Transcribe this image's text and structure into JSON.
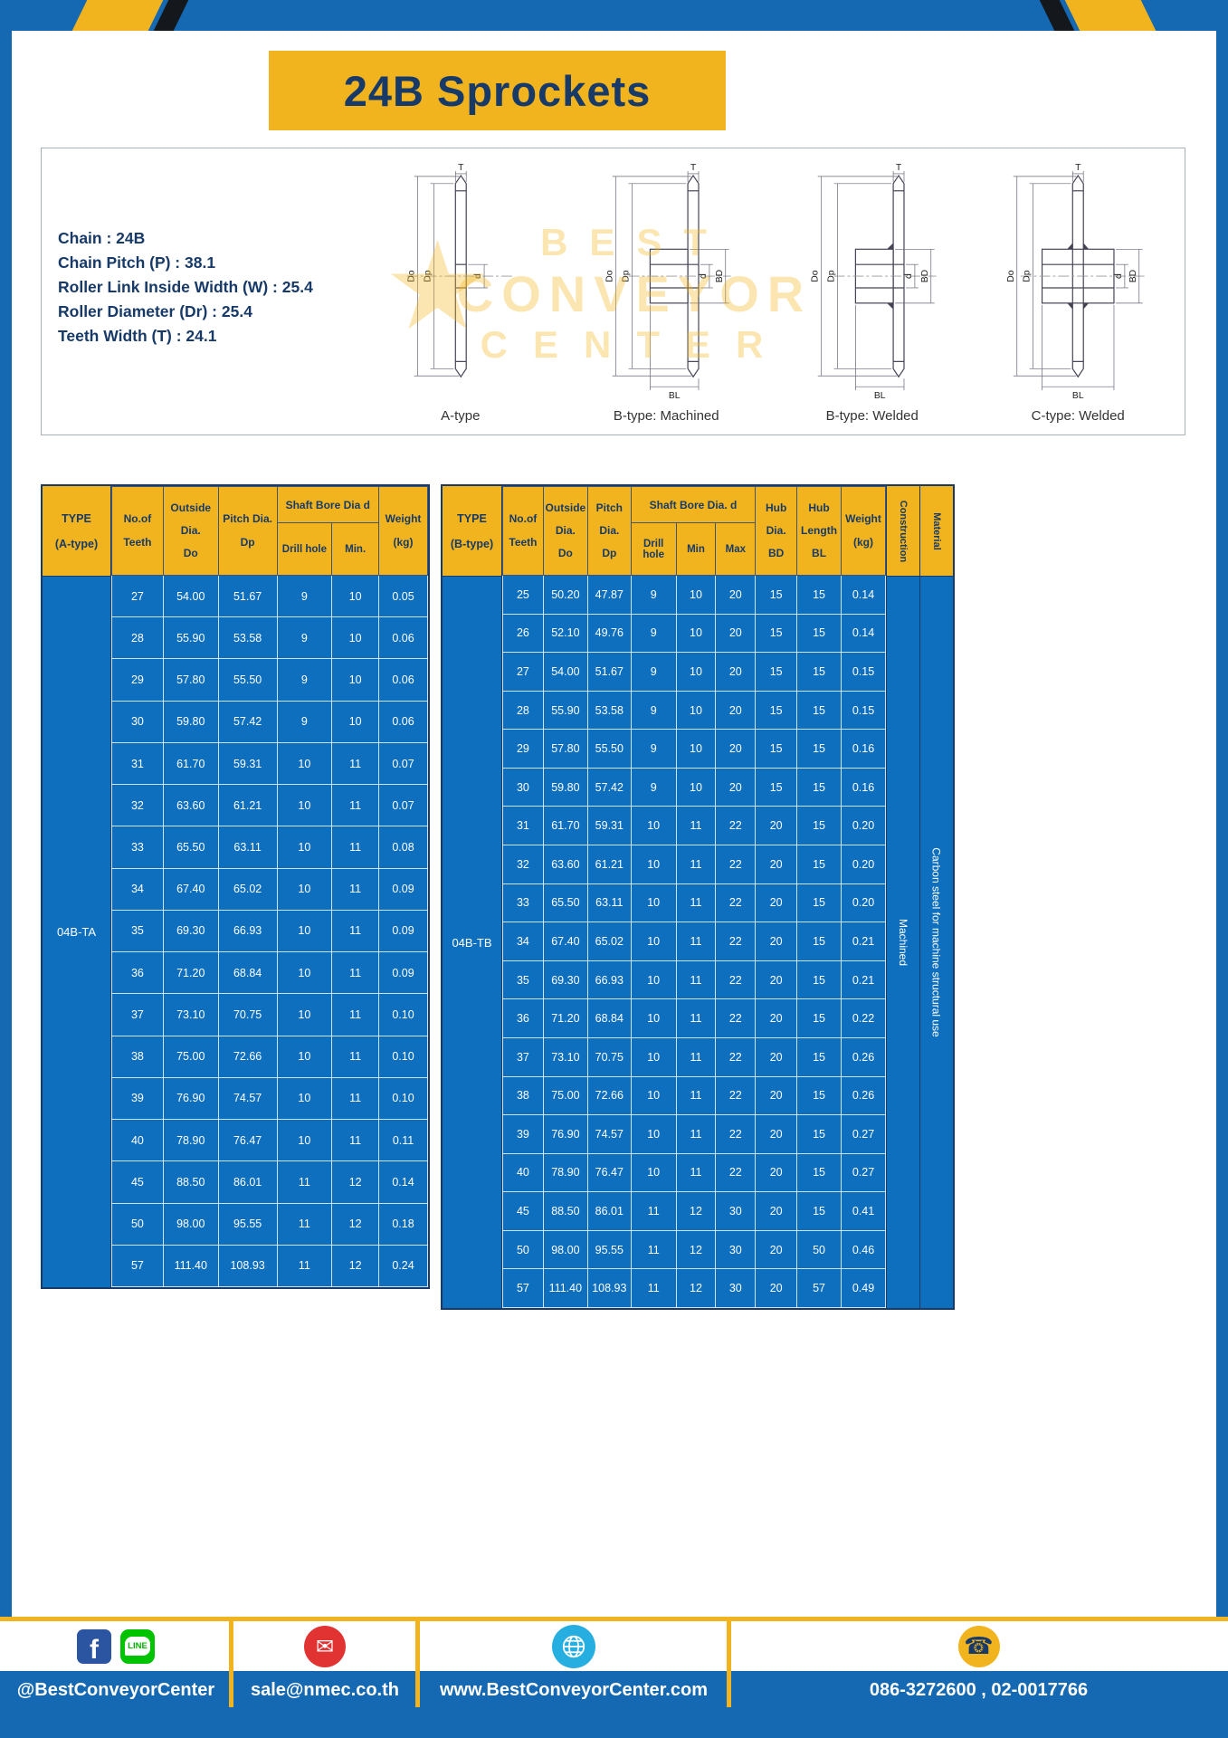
{
  "page": {
    "title": "24B Sprockets"
  },
  "specs": {
    "lines": [
      "Chain  :  24B",
      "Chain Pitch (P)  :  38.1",
      "Roller Link Inside Width (W)  :  25.4",
      "Roller Diameter (Dr)  :  25.4",
      "Teeth Width (T)  :  24.1"
    ]
  },
  "drawings": {
    "watermark": {
      "star": "★",
      "lines": [
        "BEST",
        "CONVEYOR",
        "CENTER"
      ]
    },
    "figures": [
      {
        "caption": "A-type",
        "dims": {
          "t": "T",
          "do": "Do",
          "dp": "Dp",
          "d": "d"
        }
      },
      {
        "caption": "B-type: Machined",
        "dims": {
          "t": "T",
          "do": "Do",
          "dp": "Dp",
          "d": "d",
          "bd": "BD",
          "bl": "BL"
        }
      },
      {
        "caption": "B-type: Welded",
        "dims": {
          "t": "T",
          "do": "Do",
          "dp": "Dp",
          "d": "d",
          "bd": "BD",
          "bl": "BL"
        }
      },
      {
        "caption": "C-type: Welded",
        "dims": {
          "t": "T",
          "do": "Do",
          "dp": "Dp",
          "d": "d",
          "bd": "BD",
          "bl": "BL"
        }
      }
    ]
  },
  "table_a": {
    "headers": {
      "type": [
        "TYPE",
        "(A-type)"
      ],
      "teeth": [
        "No.of",
        "Teeth"
      ],
      "outside": [
        "Outside",
        "Dia.",
        "Do"
      ],
      "pitch": [
        "Pitch Dia.",
        "Dp"
      ],
      "shaft_group": "Shaft Bore Dia d",
      "drill": "Drill hole",
      "min": "Min.",
      "weight": [
        "Weight",
        "(kg)"
      ]
    },
    "type_value": "04B-TA",
    "rows": [
      [
        "27",
        "54.00",
        "51.67",
        "9",
        "10",
        "0.05"
      ],
      [
        "28",
        "55.90",
        "53.58",
        "9",
        "10",
        "0.06"
      ],
      [
        "29",
        "57.80",
        "55.50",
        "9",
        "10",
        "0.06"
      ],
      [
        "30",
        "59.80",
        "57.42",
        "9",
        "10",
        "0.06"
      ],
      [
        "31",
        "61.70",
        "59.31",
        "10",
        "11",
        "0.07"
      ],
      [
        "32",
        "63.60",
        "61.21",
        "10",
        "11",
        "0.07"
      ],
      [
        "33",
        "65.50",
        "63.11",
        "10",
        "11",
        "0.08"
      ],
      [
        "34",
        "67.40",
        "65.02",
        "10",
        "11",
        "0.09"
      ],
      [
        "35",
        "69.30",
        "66.93",
        "10",
        "11",
        "0.09"
      ],
      [
        "36",
        "71.20",
        "68.84",
        "10",
        "11",
        "0.09"
      ],
      [
        "37",
        "73.10",
        "70.75",
        "10",
        "11",
        "0.10"
      ],
      [
        "38",
        "75.00",
        "72.66",
        "10",
        "11",
        "0.10"
      ],
      [
        "39",
        "76.90",
        "74.57",
        "10",
        "11",
        "0.10"
      ],
      [
        "40",
        "78.90",
        "76.47",
        "10",
        "11",
        "0.11"
      ],
      [
        "45",
        "88.50",
        "86.01",
        "11",
        "12",
        "0.14"
      ],
      [
        "50",
        "98.00",
        "95.55",
        "11",
        "12",
        "0.18"
      ],
      [
        "57",
        "111.40",
        "108.93",
        "11",
        "12",
        "0.24"
      ]
    ]
  },
  "table_b": {
    "headers": {
      "type": [
        "TYPE",
        "(B-type)"
      ],
      "teeth": [
        "No.of",
        "Teeth"
      ],
      "outside": [
        "Outside",
        "Dia.",
        "Do"
      ],
      "pitch": [
        "Pitch",
        "Dia.",
        "Dp"
      ],
      "shaft_group": "Shaft Bore Dia.  d",
      "drill": "Drill hole",
      "min": "Min",
      "max": "Max",
      "hub_dia": [
        "Hub",
        "Dia.",
        "BD"
      ],
      "hub_len": [
        "Hub",
        "Length",
        "BL"
      ],
      "weight": [
        "Weight",
        "(kg)"
      ],
      "construction": "Construction",
      "material": "Material"
    },
    "type_value": "04B-TB",
    "construction_value": "Machined",
    "material_value": "Carbon steel for machine structural use",
    "rows": [
      [
        "25",
        "50.20",
        "47.87",
        "9",
        "10",
        "20",
        "15",
        "15",
        "0.14"
      ],
      [
        "26",
        "52.10",
        "49.76",
        "9",
        "10",
        "20",
        "15",
        "15",
        "0.14"
      ],
      [
        "27",
        "54.00",
        "51.67",
        "9",
        "10",
        "20",
        "15",
        "15",
        "0.15"
      ],
      [
        "28",
        "55.90",
        "53.58",
        "9",
        "10",
        "20",
        "15",
        "15",
        "0.15"
      ],
      [
        "29",
        "57.80",
        "55.50",
        "9",
        "10",
        "20",
        "15",
        "15",
        "0.16"
      ],
      [
        "30",
        "59.80",
        "57.42",
        "9",
        "10",
        "20",
        "15",
        "15",
        "0.16"
      ],
      [
        "31",
        "61.70",
        "59.31",
        "10",
        "11",
        "22",
        "20",
        "15",
        "0.20"
      ],
      [
        "32",
        "63.60",
        "61.21",
        "10",
        "11",
        "22",
        "20",
        "15",
        "0.20"
      ],
      [
        "33",
        "65.50",
        "63.11",
        "10",
        "11",
        "22",
        "20",
        "15",
        "0.20"
      ],
      [
        "34",
        "67.40",
        "65.02",
        "10",
        "11",
        "22",
        "20",
        "15",
        "0.21"
      ],
      [
        "35",
        "69.30",
        "66.93",
        "10",
        "11",
        "22",
        "20",
        "15",
        "0.21"
      ],
      [
        "36",
        "71.20",
        "68.84",
        "10",
        "11",
        "22",
        "20",
        "15",
        "0.22"
      ],
      [
        "37",
        "73.10",
        "70.75",
        "10",
        "11",
        "22",
        "20",
        "15",
        "0.26"
      ],
      [
        "38",
        "75.00",
        "72.66",
        "10",
        "11",
        "22",
        "20",
        "15",
        "0.26"
      ],
      [
        "39",
        "76.90",
        "74.57",
        "10",
        "11",
        "22",
        "20",
        "15",
        "0.27"
      ],
      [
        "40",
        "78.90",
        "76.47",
        "10",
        "11",
        "22",
        "20",
        "15",
        "0.27"
      ],
      [
        "45",
        "88.50",
        "86.01",
        "11",
        "12",
        "30",
        "20",
        "15",
        "0.41"
      ],
      [
        "50",
        "98.00",
        "95.55",
        "11",
        "12",
        "30",
        "20",
        "50",
        "0.46"
      ],
      [
        "57",
        "111.40",
        "108.93",
        "11",
        "12",
        "30",
        "20",
        "57",
        "0.49"
      ]
    ]
  },
  "footer": {
    "social": {
      "icons": [
        "facebook-icon",
        "line-icon"
      ],
      "facebook_letter": "f",
      "line_label": "LINE",
      "text": "@BestConveyorCenter"
    },
    "email": {
      "icon": "mail-icon",
      "glyph": "✉",
      "text": "sale@nmec.co.th"
    },
    "website": {
      "icon": "globe-icon",
      "text": "www.BestConveyorCenter.com"
    },
    "phone": {
      "icon": "phone-icon",
      "glyph": "☎",
      "text": "086-3272600 , 02-0017766"
    }
  },
  "colors": {
    "blue": "#1568b2",
    "table_blue": "#0e6fbe",
    "yellow": "#f2b41e",
    "navy": "#173a68"
  }
}
